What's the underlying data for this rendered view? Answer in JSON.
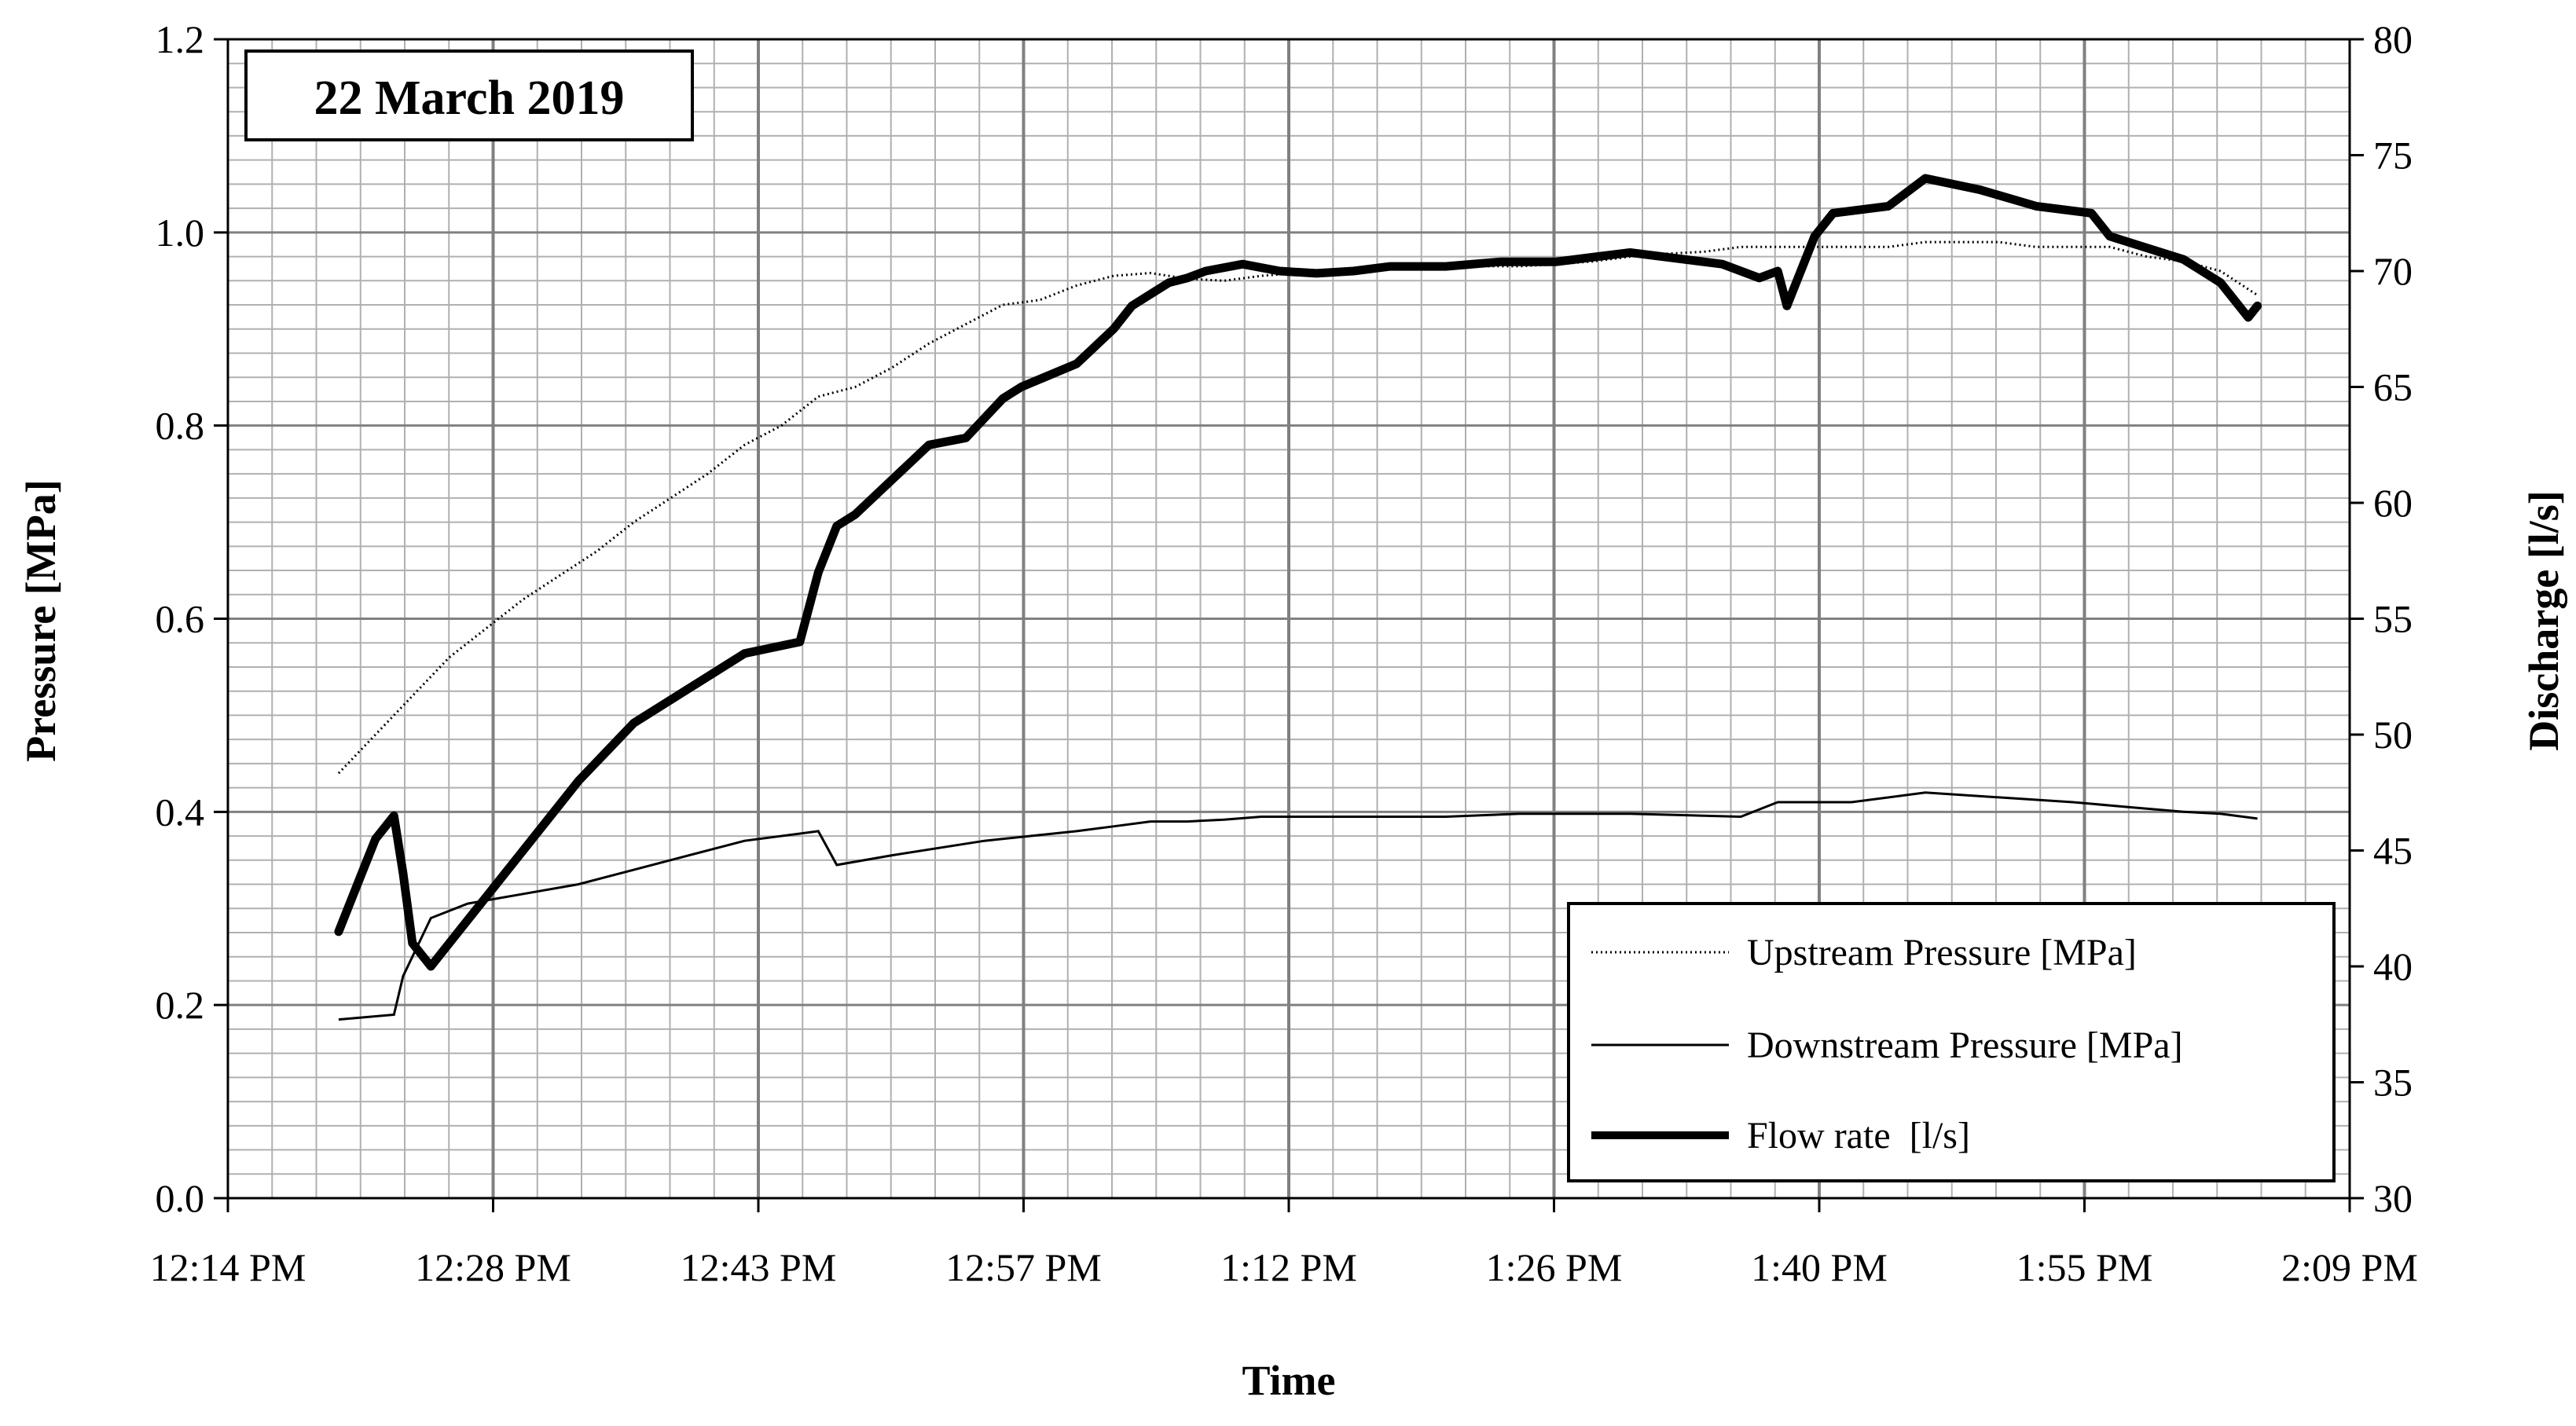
{
  "chart_data": {
    "type": "line",
    "annotation": "22 March 2019",
    "xlabel": "Time",
    "ylabel": "Pressure [MPa]",
    "y2label": "Discharge [l/s]",
    "x_tick_labels": [
      "12:14 PM",
      "12:28 PM",
      "12:43 PM",
      "12:57 PM",
      "1:12 PM",
      "1:26 PM",
      "1:40 PM",
      "1:55 PM",
      "2:09 PM"
    ],
    "xlim_minutes": [
      734,
      849
    ],
    "ylim": [
      0,
      1.2
    ],
    "y_ticks": [
      "0.0",
      "0.2",
      "0.4",
      "0.6",
      "0.8",
      "1.0",
      "1.2"
    ],
    "y2lim": [
      30,
      80
    ],
    "y2_ticks": [
      "30",
      "35",
      "40",
      "45",
      "50",
      "55",
      "60",
      "65",
      "70",
      "75",
      "80"
    ],
    "grid": true,
    "legend_position": "bottom-right",
    "series": [
      {
        "name": "Upstream Pressure [MPa]",
        "axis": "left",
        "style": "dotted",
        "x": [
          740,
          742,
          744,
          746,
          748,
          750,
          752,
          754,
          756,
          758,
          760,
          762,
          764,
          766,
          768,
          770,
          772,
          774,
          776,
          778,
          780,
          782,
          784,
          786,
          788,
          790,
          792,
          794,
          796,
          798,
          800,
          802,
          804,
          806,
          808,
          810,
          812,
          814,
          816,
          818,
          820,
          822,
          824,
          826,
          828,
          830,
          832,
          834,
          836,
          838,
          840,
          842,
          844
        ],
        "values": [
          0.44,
          0.48,
          0.52,
          0.56,
          0.59,
          0.62,
          0.645,
          0.67,
          0.7,
          0.725,
          0.75,
          0.78,
          0.8,
          0.83,
          0.84,
          0.86,
          0.885,
          0.905,
          0.925,
          0.93,
          0.945,
          0.955,
          0.958,
          0.952,
          0.95,
          0.955,
          0.958,
          0.96,
          0.962,
          0.965,
          0.965,
          0.965,
          0.965,
          0.967,
          0.97,
          0.975,
          0.978,
          0.98,
          0.985,
          0.985,
          0.985,
          0.985,
          0.985,
          0.99,
          0.99,
          0.99,
          0.985,
          0.985,
          0.985,
          0.975,
          0.97,
          0.96,
          0.935
        ]
      },
      {
        "name": "Downstream Pressure [MPa]",
        "axis": "left",
        "style": "solid",
        "x": [
          740,
          743,
          743.5,
          745,
          747,
          750,
          753,
          756,
          759,
          762,
          766,
          767,
          770,
          775,
          780,
          782,
          784,
          786,
          788,
          790,
          792,
          796,
          800,
          804,
          810,
          816,
          818,
          820,
          822,
          826,
          830,
          834,
          837,
          840,
          842,
          844
        ],
        "values": [
          0.185,
          0.19,
          0.23,
          0.29,
          0.305,
          0.315,
          0.325,
          0.34,
          0.355,
          0.37,
          0.38,
          0.345,
          0.355,
          0.37,
          0.38,
          0.385,
          0.39,
          0.39,
          0.392,
          0.395,
          0.395,
          0.395,
          0.395,
          0.398,
          0.398,
          0.395,
          0.41,
          0.41,
          0.41,
          0.42,
          0.415,
          0.41,
          0.405,
          0.4,
          0.398,
          0.393
        ]
      },
      {
        "name": "Flow rate  [l/s]",
        "axis": "right",
        "style": "thick",
        "x": [
          740,
          741,
          742,
          743,
          743.5,
          744,
          745,
          746,
          748,
          750,
          753,
          756,
          759,
          762,
          765,
          766,
          767,
          768,
          770,
          772,
          774,
          776,
          777,
          780,
          782,
          783,
          785,
          786,
          787,
          789,
          791,
          793,
          795,
          797,
          800,
          803,
          806,
          810,
          813,
          815,
          817,
          818,
          818.5,
          820,
          821,
          824,
          826,
          829,
          832,
          835,
          836,
          838,
          840,
          842,
          843.5,
          844
        ],
        "values": [
          41.5,
          43.5,
          45.5,
          46.5,
          44,
          41,
          40,
          41,
          43,
          45,
          48,
          50.5,
          52,
          53.5,
          54,
          57,
          59,
          59.5,
          61,
          62.5,
          62.8,
          64.5,
          65,
          66,
          67.5,
          68.5,
          69.5,
          69.7,
          70,
          70.3,
          70,
          69.9,
          70,
          70.2,
          70.2,
          70.4,
          70.4,
          70.8,
          70.5,
          70.3,
          69.7,
          70,
          68.5,
          71.5,
          72.5,
          72.8,
          74,
          73.5,
          72.8,
          72.5,
          71.5,
          71,
          70.5,
          69.5,
          68,
          68.5
        ]
      }
    ]
  }
}
